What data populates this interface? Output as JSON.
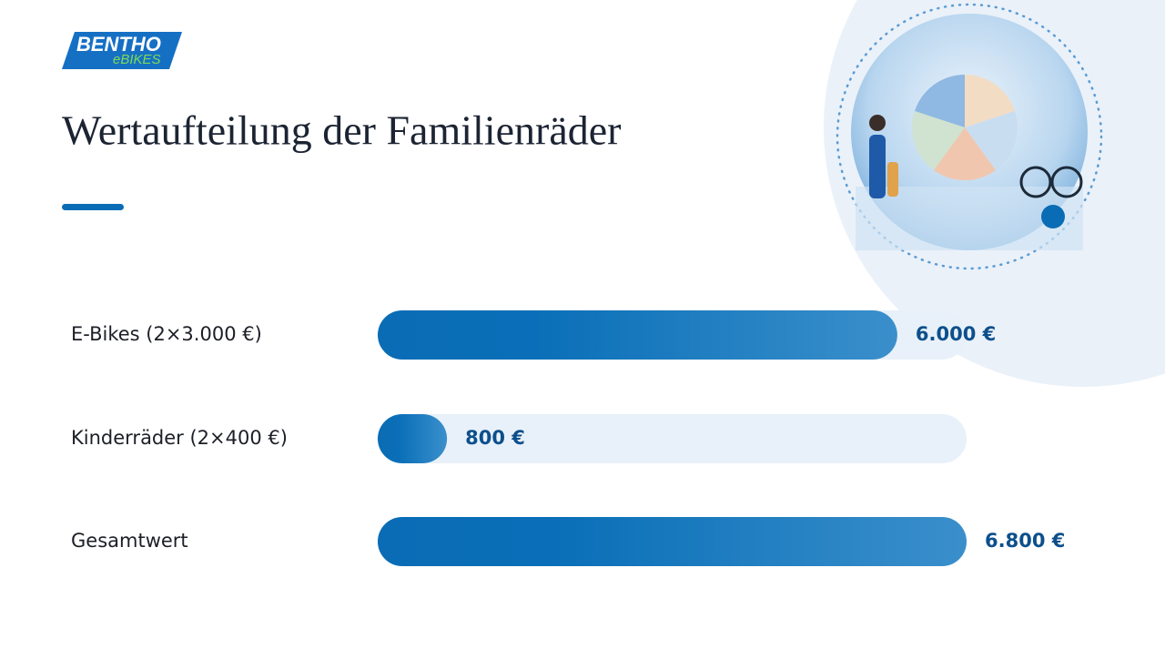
{
  "logo": {
    "name": "BENTHO",
    "tagline": "eBIKES"
  },
  "chart_data": {
    "type": "bar",
    "orientation": "horizontal",
    "title": "Wertaufteilung der Familienräder",
    "categories": [
      "E-Bikes (2×3.000 €)",
      "Kinderräder (2×400 €)",
      "Gesamtwert"
    ],
    "values": [
      6000,
      800,
      6800
    ],
    "value_labels": [
      "6.000 €",
      "800 €",
      "6.800 €"
    ],
    "xlim": [
      0,
      6800
    ],
    "color": "#0a6cb5"
  }
}
